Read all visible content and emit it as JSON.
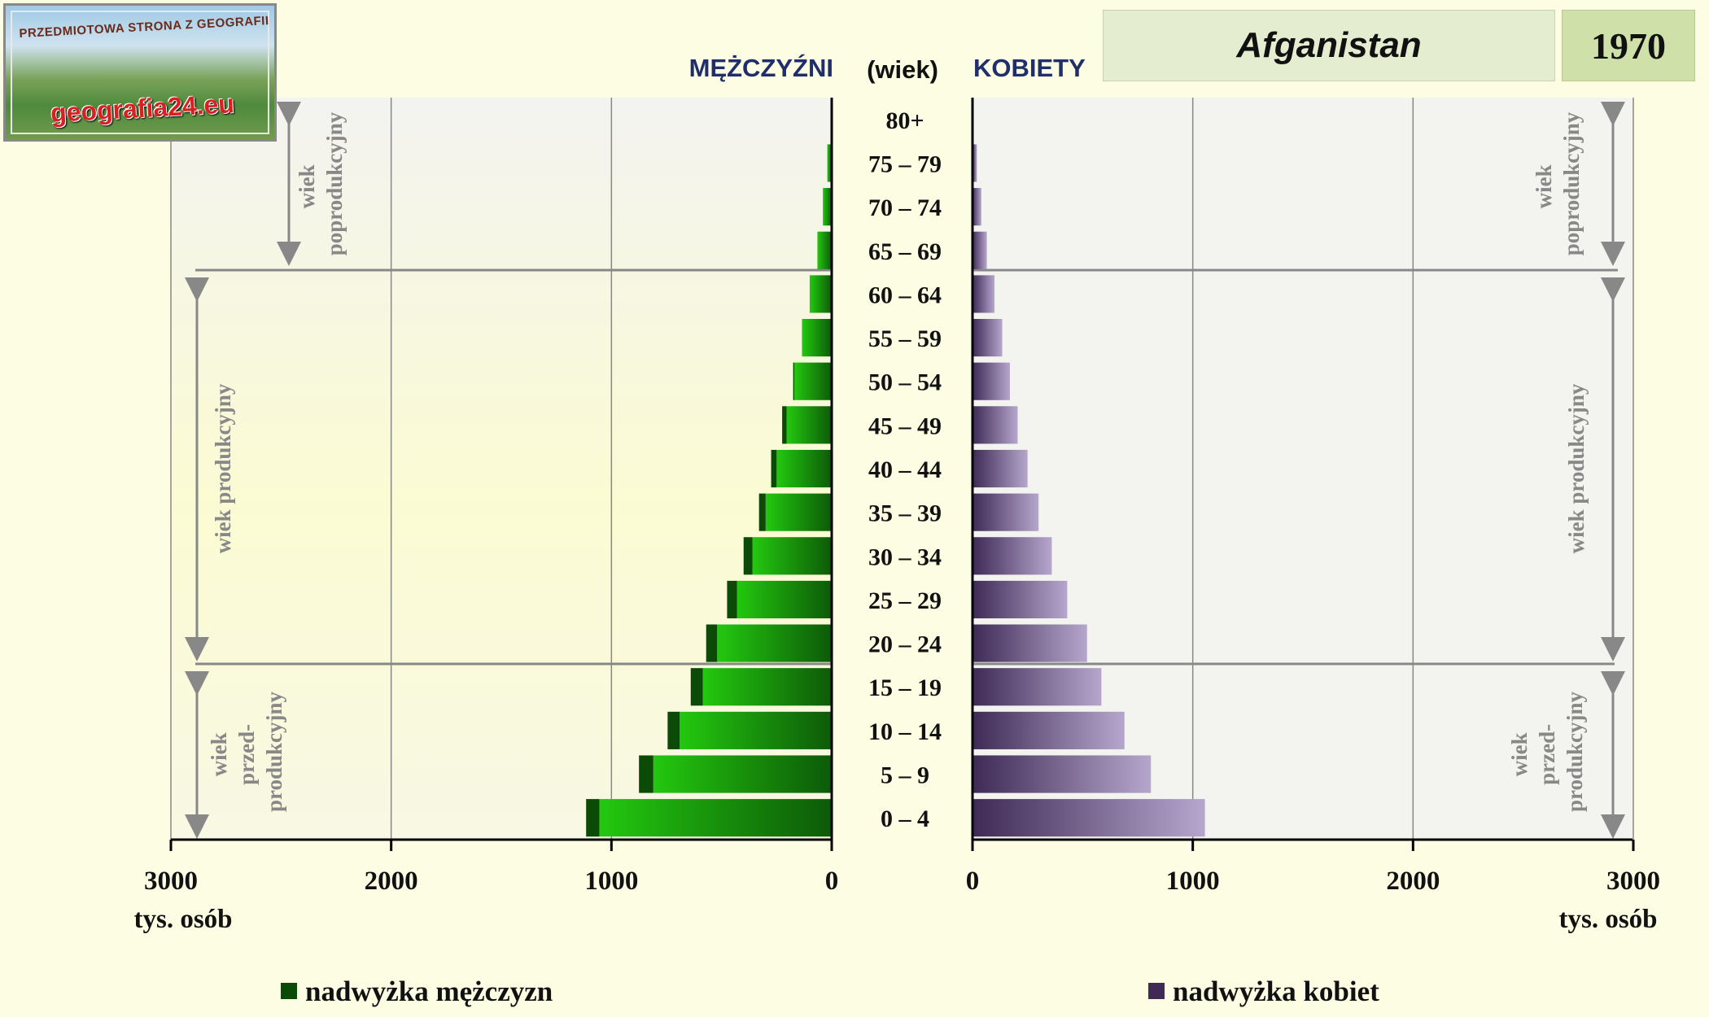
{
  "header": {
    "country": "Afganistan",
    "year": "1970",
    "men_label": "MĘŻCZYŹNI",
    "women_label": "KOBIETY",
    "age_label": "(wiek)"
  },
  "logo": {
    "top_text": "PRZEDMIOTOWA STRONA Z GEOGRAFII",
    "bottom_text": "geografia24.eu"
  },
  "axes": {
    "unit_label": "tys. osób",
    "left_ticks": [
      "3000",
      "2000",
      "1000",
      "0"
    ],
    "right_ticks": [
      "0",
      "1000",
      "2000",
      "3000"
    ]
  },
  "bands": {
    "post": [
      "wiek",
      "poprodukcyjny"
    ],
    "prod": [
      "wiek produkcyjny"
    ],
    "pre": [
      "wiek",
      "przed-",
      "produkcyjny"
    ]
  },
  "legend": {
    "male_surplus": "nadwyżka mężczyzn",
    "female_surplus": "nadwyżka kobiet"
  },
  "colors": {
    "male_light": "#22c60e",
    "male_dark": "#0b4a07",
    "female_dark": "#3e2a55",
    "female_light": "#b6a6cc",
    "axis": "#000000",
    "grid": "#888888"
  },
  "chart_data": {
    "type": "bar",
    "orientation": "horizontal-pyramid",
    "xlim": [
      0,
      3000
    ],
    "x_unit": "tys. osób",
    "categories": [
      "0 – 4",
      "5 – 9",
      "10 – 14",
      "15 – 19",
      "20 – 24",
      "25 – 29",
      "30 – 34",
      "35 – 39",
      "40 – 44",
      "45 – 49",
      "50 – 54",
      "55 – 59",
      "60 – 64",
      "65 – 69",
      "70 – 74",
      "75 – 79",
      "80+"
    ],
    "series": [
      {
        "side": "left",
        "values": [
          1115,
          875,
          745,
          640,
          570,
          475,
          400,
          330,
          275,
          225,
          175,
          135,
          100,
          65,
          40,
          20,
          5
        ]
      },
      {
        "side": "right",
        "values": [
          1055,
          810,
          690,
          585,
          520,
          430,
          360,
          300,
          250,
          205,
          170,
          135,
          100,
          65,
          40,
          20,
          5
        ]
      }
    ],
    "legend": [
      "nadwyżka mężczyzn",
      "nadwyżka kobiet"
    ],
    "grid": true
  }
}
